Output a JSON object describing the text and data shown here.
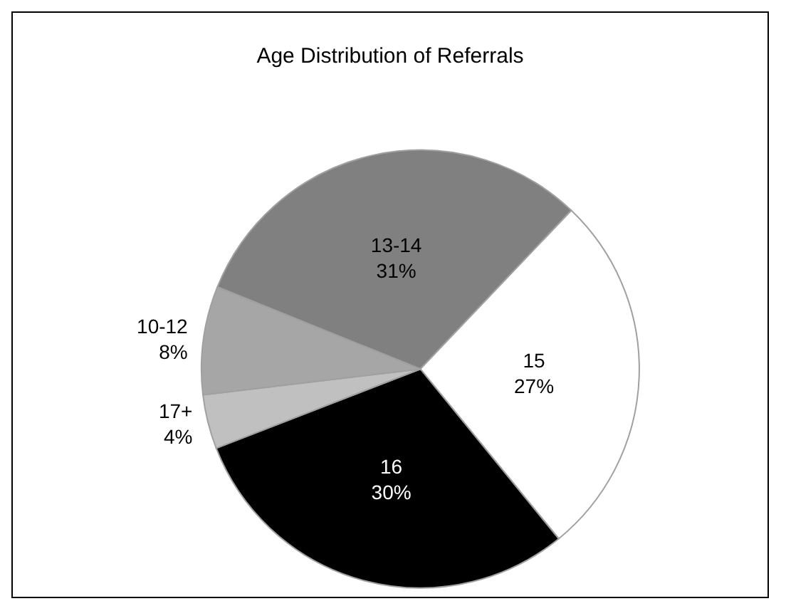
{
  "chart_data": {
    "type": "pie",
    "title": "Age Distribution of Referrals",
    "categories": [
      "13-14",
      "15",
      "16",
      "17+",
      "10-12"
    ],
    "values": [
      31,
      27,
      30,
      4,
      8
    ],
    "value_labels": [
      "31%",
      "27%",
      "30%",
      "4%",
      "8%"
    ],
    "colors": [
      "#808080",
      "#ffffff",
      "#000000",
      "#c0c0c0",
      "#a6a6a6"
    ],
    "legend": false
  }
}
